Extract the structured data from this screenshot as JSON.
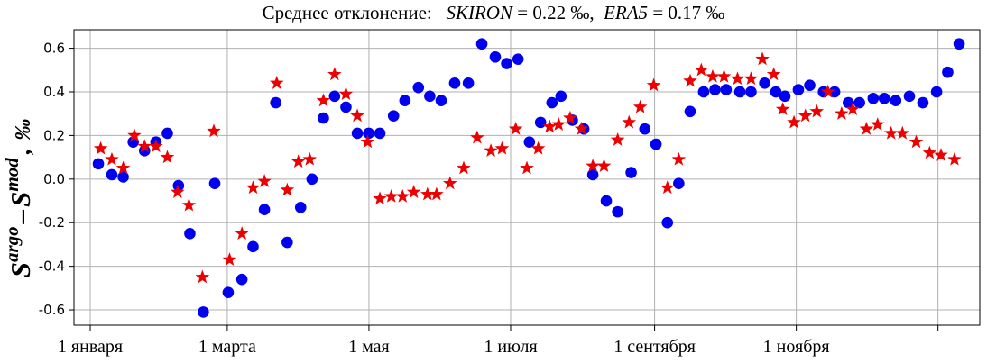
{
  "title": {
    "prefix": "Среднее отклонение:",
    "s1_name": "SKIRON",
    "s1_value": "= 0.22 ‰,",
    "s2_name": "ERA5",
    "s2_value": "= 0.17 ‰"
  },
  "ylabel": {
    "s": "S",
    "argo": "argo",
    "dash": "–",
    "mod": "mod",
    "comma": ",",
    "unit": "‰"
  },
  "chart_data": {
    "type": "scatter",
    "x_unit": "day of year",
    "xticks": [
      {
        "x": 1,
        "label": "1 января"
      },
      {
        "x": 60,
        "label": "1 марта"
      },
      {
        "x": 121,
        "label": "1 мая"
      },
      {
        "x": 182,
        "label": "1 июля"
      },
      {
        "x": 244,
        "label": "1 сентября"
      },
      {
        "x": 305,
        "label": "1 ноября"
      },
      {
        "x": 366,
        "label": ""
      }
    ],
    "yticks": [
      -0.6,
      -0.4,
      -0.2,
      0.0,
      0.2,
      0.4,
      0.6
    ],
    "ytick_labels": [
      "-0.6",
      "-0.4",
      "-0.2",
      "0.0",
      "0.2",
      "0.4",
      "0.6"
    ],
    "xlim": [
      -6,
      384
    ],
    "ylim": [
      -0.67,
      0.685
    ],
    "grid": true,
    "series": [
      {
        "marker": "circle",
        "color": "#0000ee",
        "points": [
          [
            4.5,
            0.07
          ],
          [
            10.3,
            0.02
          ],
          [
            15.2,
            0.01
          ],
          [
            19.5,
            0.17
          ],
          [
            24.4,
            0.13
          ],
          [
            29.3,
            0.17
          ],
          [
            34.2,
            0.21
          ],
          [
            39.0,
            -0.03
          ],
          [
            43.9,
            -0.25
          ],
          [
            49.7,
            -0.61
          ],
          [
            54.6,
            -0.02
          ],
          [
            60.4,
            -0.52
          ],
          [
            66.3,
            -0.46
          ],
          [
            71.1,
            -0.31
          ],
          [
            76.0,
            -0.14
          ],
          [
            80.9,
            0.35
          ],
          [
            85.8,
            -0.29
          ],
          [
            91.6,
            -0.13
          ],
          [
            96.5,
            0.0
          ],
          [
            101.4,
            0.28
          ],
          [
            106.2,
            0.38
          ],
          [
            111.1,
            0.33
          ],
          [
            116.0,
            0.21
          ],
          [
            120.9,
            0.21
          ],
          [
            125.7,
            0.21
          ],
          [
            131.6,
            0.29
          ],
          [
            136.5,
            0.36
          ],
          [
            142.3,
            0.42
          ],
          [
            147.2,
            0.38
          ],
          [
            152.1,
            0.36
          ],
          [
            157.9,
            0.44
          ],
          [
            163.8,
            0.44
          ],
          [
            169.6,
            0.62
          ],
          [
            175.4,
            0.56
          ],
          [
            180.3,
            0.53
          ],
          [
            185.2,
            0.55
          ],
          [
            190.1,
            0.17
          ],
          [
            194.9,
            0.26
          ],
          [
            199.8,
            0.35
          ],
          [
            203.7,
            0.38
          ],
          [
            208.6,
            0.27
          ],
          [
            213.5,
            0.23
          ],
          [
            217.4,
            0.02
          ],
          [
            223.2,
            -0.1
          ],
          [
            228.1,
            -0.15
          ],
          [
            233.9,
            0.03
          ],
          [
            239.8,
            0.23
          ],
          [
            244.6,
            0.16
          ],
          [
            249.5,
            -0.2
          ],
          [
            254.4,
            -0.02
          ],
          [
            259.3,
            0.31
          ],
          [
            265.1,
            0.4
          ],
          [
            270.0,
            0.41
          ],
          [
            274.8,
            0.41
          ],
          [
            280.7,
            0.4
          ],
          [
            285.5,
            0.4
          ],
          [
            291.4,
            0.44
          ],
          [
            296.2,
            0.4
          ],
          [
            300.1,
            0.38
          ],
          [
            305.9,
            0.41
          ],
          [
            310.8,
            0.43
          ],
          [
            316.7,
            0.4
          ],
          [
            321.5,
            0.4
          ],
          [
            327.4,
            0.35
          ],
          [
            332.2,
            0.35
          ],
          [
            338.1,
            0.37
          ],
          [
            342.9,
            0.37
          ],
          [
            347.8,
            0.36
          ],
          [
            353.7,
            0.38
          ],
          [
            359.5,
            0.35
          ],
          [
            365.4,
            0.4
          ],
          [
            370.2,
            0.49
          ],
          [
            375.1,
            0.62
          ]
        ]
      },
      {
        "marker": "star",
        "color": "#ee0000",
        "points": [
          [
            5.5,
            0.14
          ],
          [
            10.3,
            0.09
          ],
          [
            15.2,
            0.05
          ],
          [
            20.0,
            0.2
          ],
          [
            24.4,
            0.15
          ],
          [
            29.3,
            0.15
          ],
          [
            34.2,
            0.1
          ],
          [
            38.6,
            -0.06
          ],
          [
            43.5,
            -0.12
          ],
          [
            49.3,
            -0.45
          ],
          [
            54.2,
            0.22
          ],
          [
            61.0,
            -0.37
          ],
          [
            66.3,
            -0.25
          ],
          [
            71.1,
            -0.04
          ],
          [
            76.0,
            -0.01
          ],
          [
            81.3,
            0.44
          ],
          [
            85.8,
            -0.05
          ],
          [
            90.6,
            0.08
          ],
          [
            95.5,
            0.09
          ],
          [
            101.4,
            0.36
          ],
          [
            106.2,
            0.48
          ],
          [
            111.1,
            0.39
          ],
          [
            116.0,
            0.29
          ],
          [
            120.4,
            0.17
          ],
          [
            125.7,
            -0.09
          ],
          [
            130.6,
            -0.08
          ],
          [
            135.5,
            -0.08
          ],
          [
            140.3,
            -0.06
          ],
          [
            146.2,
            -0.07
          ],
          [
            150.1,
            -0.07
          ],
          [
            155.9,
            -0.02
          ],
          [
            161.8,
            0.05
          ],
          [
            167.6,
            0.19
          ],
          [
            173.5,
            0.13
          ],
          [
            178.3,
            0.14
          ],
          [
            184.2,
            0.23
          ],
          [
            189.0,
            0.05
          ],
          [
            193.9,
            0.14
          ],
          [
            198.8,
            0.24
          ],
          [
            202.7,
            0.25
          ],
          [
            207.6,
            0.28
          ],
          [
            212.5,
            0.23
          ],
          [
            217.4,
            0.06
          ],
          [
            222.2,
            0.06
          ],
          [
            228.1,
            0.18
          ],
          [
            233.0,
            0.26
          ],
          [
            237.8,
            0.33
          ],
          [
            243.6,
            0.43
          ],
          [
            249.5,
            -0.04
          ],
          [
            254.4,
            0.09
          ],
          [
            259.3,
            0.45
          ],
          [
            264.1,
            0.5
          ],
          [
            269.0,
            0.47
          ],
          [
            273.9,
            0.47
          ],
          [
            279.7,
            0.46
          ],
          [
            285.5,
            0.46
          ],
          [
            290.4,
            0.55
          ],
          [
            295.3,
            0.48
          ],
          [
            299.2,
            0.32
          ],
          [
            304.0,
            0.26
          ],
          [
            308.9,
            0.29
          ],
          [
            313.8,
            0.31
          ],
          [
            318.6,
            0.4
          ],
          [
            324.5,
            0.3
          ],
          [
            329.3,
            0.32
          ],
          [
            335.2,
            0.23
          ],
          [
            340.0,
            0.25
          ],
          [
            345.8,
            0.21
          ],
          [
            350.7,
            0.21
          ],
          [
            356.6,
            0.17
          ],
          [
            362.4,
            0.12
          ],
          [
            367.3,
            0.11
          ],
          [
            373.1,
            0.09
          ]
        ]
      }
    ]
  }
}
